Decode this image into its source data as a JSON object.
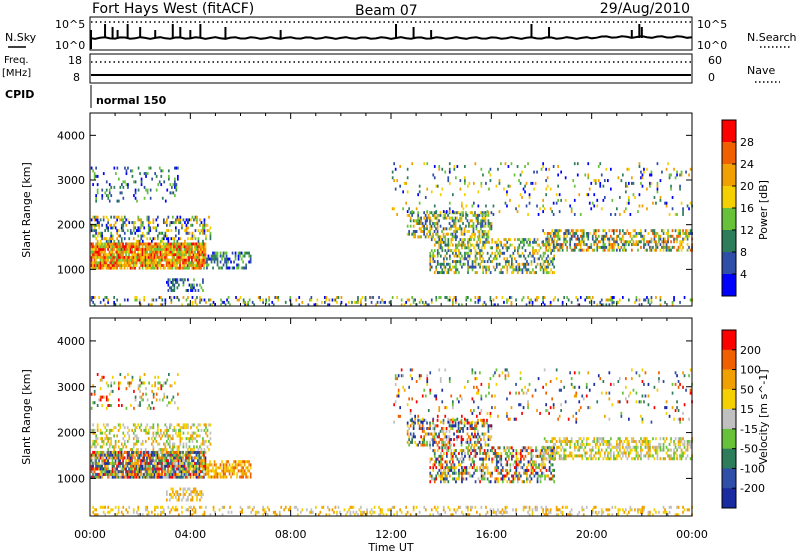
{
  "header": {
    "radar": "Fort Hays West (fitACF)",
    "beam": "Beam 07",
    "date": "29/Aug/2010"
  },
  "noise_panel": {
    "left_label": "N.Sky",
    "right_label": "N.Search",
    "top_tick": "10^5",
    "bottom_tick": "10^0",
    "spikes_hours": [
      0.6,
      0.9,
      1.1,
      1.5,
      2.0,
      2.6,
      3.3,
      3.6,
      4.0,
      4.4,
      5.4,
      7.6,
      12.2,
      12.9,
      13.6,
      17.6,
      18.3,
      21.6,
      21.9,
      22.0
    ]
  },
  "freq_panel": {
    "left_label_1": "Freq.",
    "left_label_2": "[MHz]",
    "left_top_tick": "18",
    "left_bottom_tick": "8",
    "right_label": "Nave",
    "right_top_tick": "60",
    "right_bottom_tick": "0"
  },
  "cpid_panel": {
    "label": "CPID",
    "mode": "normal 150"
  },
  "chart_data": [
    {
      "type": "heatmap",
      "name": "power",
      "ylabel": "Slant Range [km]",
      "xlabel": "Time UT",
      "x_ticks": [
        "00:00",
        "04:00",
        "08:00",
        "12:00",
        "16:00",
        "20:00",
        "00:00"
      ],
      "xlim_hours": [
        0,
        24
      ],
      "ylim_km": [
        180,
        4500
      ],
      "y_ticks": [
        1000,
        2000,
        3000,
        4000
      ],
      "colorbar_label": "Power [dB]",
      "colorbar_ticks": [
        "4",
        "8",
        "12",
        "16",
        "20",
        "24",
        "28"
      ],
      "colorbar_colors": [
        "#0000ff",
        "#2f4ea8",
        "#2e7d5a",
        "#67c23a",
        "#f5d000",
        "#f0a000",
        "#f06000",
        "#ff0000"
      ],
      "scatter_regions": [
        {
          "t0": 0.0,
          "t1": 4.6,
          "r0": 1000,
          "r1": 1600,
          "level": [
            3,
            7
          ],
          "density": 0.9
        },
        {
          "t0": 0.0,
          "t1": 4.8,
          "r0": 1600,
          "r1": 2200,
          "level": [
            0,
            5
          ],
          "density": 0.35
        },
        {
          "t0": 4.6,
          "t1": 6.4,
          "r0": 1000,
          "r1": 1400,
          "level": [
            0,
            3
          ],
          "density": 0.55
        },
        {
          "t0": 3.0,
          "t1": 4.5,
          "r0": 500,
          "r1": 800,
          "level": [
            0,
            3
          ],
          "density": 0.4
        },
        {
          "t0": 0.0,
          "t1": 3.5,
          "r0": 2500,
          "r1": 3300,
          "level": [
            0,
            3
          ],
          "density": 0.15
        },
        {
          "t0": 0.0,
          "t1": 24.0,
          "r0": 180,
          "r1": 400,
          "level": [
            0,
            5
          ],
          "density": 0.2
        },
        {
          "t0": 12.6,
          "t1": 16.0,
          "r0": 1700,
          "r1": 2300,
          "level": [
            1,
            5
          ],
          "density": 0.45
        },
        {
          "t0": 13.5,
          "t1": 18.5,
          "r0": 900,
          "r1": 1700,
          "level": [
            1,
            5
          ],
          "density": 0.45
        },
        {
          "t0": 18.0,
          "t1": 24.0,
          "r0": 1400,
          "r1": 1900,
          "level": [
            1,
            6
          ],
          "density": 0.5
        },
        {
          "t0": 12.0,
          "t1": 24.0,
          "r0": 2200,
          "r1": 3400,
          "level": [
            0,
            5
          ],
          "density": 0.08
        }
      ]
    },
    {
      "type": "heatmap",
      "name": "velocity",
      "ylabel": "Slant Range [km]",
      "xlabel": "Time UT",
      "x_ticks": [
        "00:00",
        "04:00",
        "08:00",
        "12:00",
        "16:00",
        "20:00",
        "00:00"
      ],
      "xlim_hours": [
        0,
        24
      ],
      "ylim_km": [
        180,
        4500
      ],
      "y_ticks": [
        1000,
        2000,
        3000,
        4000
      ],
      "colorbar_label": "Velocity [m s^-1]",
      "colorbar_ticks": [
        "200",
        "100",
        "50",
        "15",
        "-15",
        "-50",
        "-100",
        "-200"
      ],
      "colorbar_colors": [
        "#1a2aa0",
        "#2f4ea8",
        "#2e7d5a",
        "#67c23a",
        "#c0c0c0",
        "#f5d000",
        "#f0a000",
        "#f06000",
        "#ff0000"
      ],
      "scatter_regions": [
        {
          "t0": 0.0,
          "t1": 4.6,
          "r0": 1000,
          "r1": 1600,
          "level": [
            0,
            8
          ],
          "density": 0.85
        },
        {
          "t0": 0.0,
          "t1": 4.8,
          "r0": 1600,
          "r1": 2200,
          "level": [
            3,
            6
          ],
          "density": 0.35
        },
        {
          "t0": 4.6,
          "t1": 6.4,
          "r0": 1000,
          "r1": 1400,
          "level": [
            5,
            7
          ],
          "density": 0.6
        },
        {
          "t0": 3.0,
          "t1": 4.5,
          "r0": 500,
          "r1": 800,
          "level": [
            4,
            6
          ],
          "density": 0.4
        },
        {
          "t0": 0.0,
          "t1": 3.5,
          "r0": 2500,
          "r1": 3300,
          "level": [
            2,
            8
          ],
          "density": 0.15
        },
        {
          "t0": 0.0,
          "t1": 24.0,
          "r0": 180,
          "r1": 400,
          "level": [
            4,
            6
          ],
          "density": 0.25
        },
        {
          "t0": 12.6,
          "t1": 16.0,
          "r0": 1700,
          "r1": 2300,
          "level": [
            0,
            8
          ],
          "density": 0.45
        },
        {
          "t0": 13.5,
          "t1": 18.5,
          "r0": 900,
          "r1": 1700,
          "level": [
            0,
            8
          ],
          "density": 0.45
        },
        {
          "t0": 18.0,
          "t1": 24.0,
          "r0": 1400,
          "r1": 1900,
          "level": [
            3,
            6
          ],
          "density": 0.5
        },
        {
          "t0": 12.0,
          "t1": 24.0,
          "r0": 2200,
          "r1": 3400,
          "level": [
            0,
            8
          ],
          "density": 0.08
        }
      ]
    }
  ]
}
